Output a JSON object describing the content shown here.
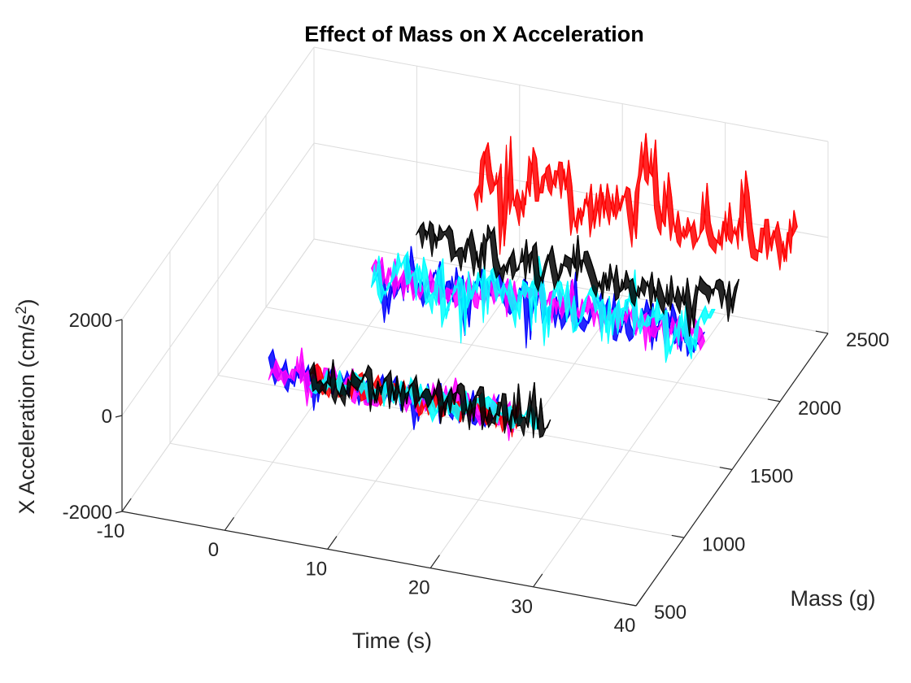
{
  "chart_data": {
    "type": "line",
    "title": "Effect of Mass  on  X Acceleration",
    "xlabel": "Time (s)",
    "ylabel": "Mass (g)",
    "zlabel_main": "X Acceleration (cm/s",
    "zlabel_sup": "2",
    "zlabel_close": ")",
    "xlim": [
      -10,
      40
    ],
    "ylim": [
      500,
      2500
    ],
    "zlim": [
      -2000,
      2000
    ],
    "x_ticks": [
      "-10",
      "0",
      "10",
      "20",
      "30",
      "40"
    ],
    "y_ticks": [
      "500",
      "1000",
      "1500",
      "2000",
      "2500"
    ],
    "z_ticks": [
      "-2000",
      "0",
      "2000"
    ],
    "grid": true,
    "series": [
      {
        "color": "#0000ff",
        "mass": 1000,
        "t_start": 0,
        "t_end": 22,
        "amplitude": 550
      },
      {
        "color": "#ff00ff",
        "mass": 1000,
        "t_start": 0,
        "t_end": 24,
        "amplitude": 500
      },
      {
        "color": "#ff0000",
        "mass": 1000,
        "t_start": 4,
        "t_end": 24,
        "amplitude": 450
      },
      {
        "color": "#00ffff",
        "mass": 1000,
        "t_start": 4,
        "t_end": 26,
        "amplitude": 450
      },
      {
        "color": "#000000",
        "mass": 1000,
        "t_start": 4,
        "t_end": 27,
        "amplitude": 700
      },
      {
        "color": "#0000ff",
        "mass": 1750,
        "t_start": 3,
        "t_end": 35,
        "amplitude": 800
      },
      {
        "color": "#ff00ff",
        "mass": 1750,
        "t_start": 3,
        "t_end": 35,
        "amplitude": 600
      },
      {
        "color": "#00ffff",
        "mass": 1750,
        "t_start": 3,
        "t_end": 36,
        "amplitude": 1000
      },
      {
        "color": "#000000",
        "mass": 2000,
        "t_start": 5,
        "t_end": 36,
        "amplitude": 750
      },
      {
        "color": "#ff0000",
        "mass": 2500,
        "t_start": 6,
        "t_end": 37,
        "amplitude": 1400
      }
    ]
  }
}
